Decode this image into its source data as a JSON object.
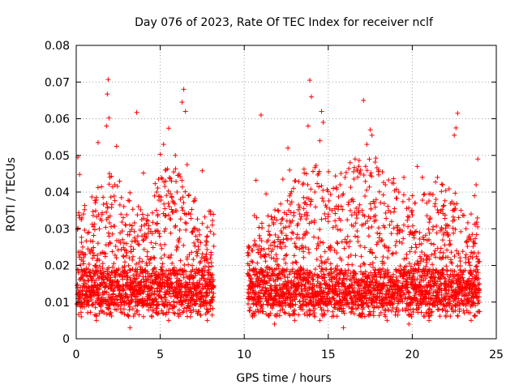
{
  "chart_data": {
    "type": "scatter",
    "title": "Day 076 of 2023, Rate Of TEC Index for receiver nclf",
    "xlabel": "GPS time / hours",
    "ylabel": "ROTI / TECUs",
    "xlim": [
      0,
      25
    ],
    "ylim": [
      0,
      0.08
    ],
    "xticks": [
      0,
      5,
      10,
      15,
      20,
      25
    ],
    "xtick_labels": [
      "0",
      "5",
      "10",
      "15",
      "20",
      "25"
    ],
    "yticks": [
      0,
      0.01,
      0.02,
      0.03,
      0.04,
      0.05,
      0.06,
      0.07,
      0.08
    ],
    "ytick_labels": [
      "0",
      "0.01",
      "0.02",
      "0.03",
      "0.04",
      "0.05",
      "0.06",
      "0.07",
      "0.08"
    ],
    "grid": true,
    "marker": "plus",
    "color": "#ff0000",
    "data_gap_hours": [
      8.2,
      10.2
    ],
    "series": [
      {
        "name": "ROTI",
        "points": [
          [
            0.1,
            0.0495
          ],
          [
            0.2,
            0.0448
          ],
          [
            0.3,
            0.0325
          ],
          [
            0.5,
            0.0296
          ],
          [
            0.7,
            0.0245
          ],
          [
            1.0,
            0.0347
          ],
          [
            1.2,
            0.0385
          ],
          [
            1.3,
            0.0535
          ],
          [
            1.6,
            0.0386
          ],
          [
            1.8,
            0.058
          ],
          [
            1.85,
            0.0667
          ],
          [
            1.9,
            0.0707
          ],
          [
            1.95,
            0.0602
          ],
          [
            2.0,
            0.044
          ],
          [
            2.3,
            0.042
          ],
          [
            2.4,
            0.0525
          ],
          [
            2.6,
            0.0365
          ],
          [
            2.8,
            0.033
          ],
          [
            3.0,
            0.0338
          ],
          [
            3.2,
            0.0398
          ],
          [
            3.6,
            0.0617
          ],
          [
            3.9,
            0.0325
          ],
          [
            4.0,
            0.0452
          ],
          [
            4.3,
            0.03
          ],
          [
            4.7,
            0.0423
          ],
          [
            4.9,
            0.0435
          ],
          [
            5.0,
            0.0503
          ],
          [
            5.2,
            0.053
          ],
          [
            5.5,
            0.0574
          ],
          [
            5.8,
            0.0455
          ],
          [
            5.9,
            0.05
          ],
          [
            6.0,
            0.04
          ],
          [
            6.2,
            0.038
          ],
          [
            6.3,
            0.0645
          ],
          [
            6.4,
            0.068
          ],
          [
            6.5,
            0.062
          ],
          [
            6.6,
            0.0475
          ],
          [
            6.8,
            0.034
          ],
          [
            7.0,
            0.03
          ],
          [
            7.3,
            0.0296
          ],
          [
            7.5,
            0.0458
          ],
          [
            7.8,
            0.028
          ],
          [
            8.0,
            0.034
          ],
          [
            8.1,
            0.031
          ],
          [
            10.3,
            0.025
          ],
          [
            10.6,
            0.0336
          ],
          [
            10.7,
            0.0432
          ],
          [
            11.0,
            0.061
          ],
          [
            11.3,
            0.0395
          ],
          [
            11.8,
            0.033
          ],
          [
            12.0,
            0.035
          ],
          [
            12.3,
            0.0435
          ],
          [
            12.6,
            0.052
          ],
          [
            12.7,
            0.046
          ],
          [
            13.0,
            0.043
          ],
          [
            13.3,
            0.034
          ],
          [
            13.7,
            0.045
          ],
          [
            13.8,
            0.058
          ],
          [
            13.9,
            0.0705
          ],
          [
            14.0,
            0.066
          ],
          [
            14.2,
            0.04
          ],
          [
            14.5,
            0.054
          ],
          [
            14.6,
            0.062
          ],
          [
            14.7,
            0.059
          ],
          [
            15.0,
            0.032
          ],
          [
            15.3,
            0.041
          ],
          [
            15.7,
            0.042
          ],
          [
            16.0,
            0.044
          ],
          [
            16.3,
            0.048
          ],
          [
            16.6,
            0.049
          ],
          [
            16.9,
            0.045
          ],
          [
            17.1,
            0.065
          ],
          [
            17.3,
            0.053
          ],
          [
            17.5,
            0.057
          ],
          [
            17.6,
            0.0555
          ],
          [
            18.0,
            0.046
          ],
          [
            18.4,
            0.042
          ],
          [
            18.8,
            0.0425
          ],
          [
            19.2,
            0.04
          ],
          [
            19.5,
            0.044
          ],
          [
            19.8,
            0.038
          ],
          [
            20.0,
            0.039
          ],
          [
            20.3,
            0.047
          ],
          [
            20.6,
            0.044
          ],
          [
            21.0,
            0.0395
          ],
          [
            21.5,
            0.044
          ],
          [
            21.8,
            0.042
          ],
          [
            22.0,
            0.031
          ],
          [
            22.4,
            0.035
          ],
          [
            22.5,
            0.0555
          ],
          [
            22.6,
            0.0575
          ],
          [
            22.7,
            0.0615
          ],
          [
            22.9,
            0.035
          ],
          [
            23.2,
            0.03
          ],
          [
            23.5,
            0.034
          ],
          [
            23.7,
            0.039
          ],
          [
            23.8,
            0.042
          ],
          [
            23.9,
            0.049
          ],
          [
            24.0,
            0.021
          ],
          [
            0.3,
            0.006
          ],
          [
            1.2,
            0.005
          ],
          [
            2.0,
            0.007
          ],
          [
            3.2,
            0.003
          ],
          [
            4.5,
            0.006
          ],
          [
            5.5,
            0.005
          ],
          [
            6.8,
            0.006
          ],
          [
            7.8,
            0.005
          ],
          [
            10.5,
            0.006
          ],
          [
            11.8,
            0.004
          ],
          [
            13.0,
            0.005
          ],
          [
            14.5,
            0.005
          ],
          [
            15.9,
            0.003
          ],
          [
            17.0,
            0.006
          ],
          [
            18.5,
            0.005
          ],
          [
            19.8,
            0.004
          ],
          [
            21.0,
            0.005
          ],
          [
            22.0,
            0.006
          ],
          [
            23.5,
            0.005
          ]
        ]
      }
    ]
  }
}
